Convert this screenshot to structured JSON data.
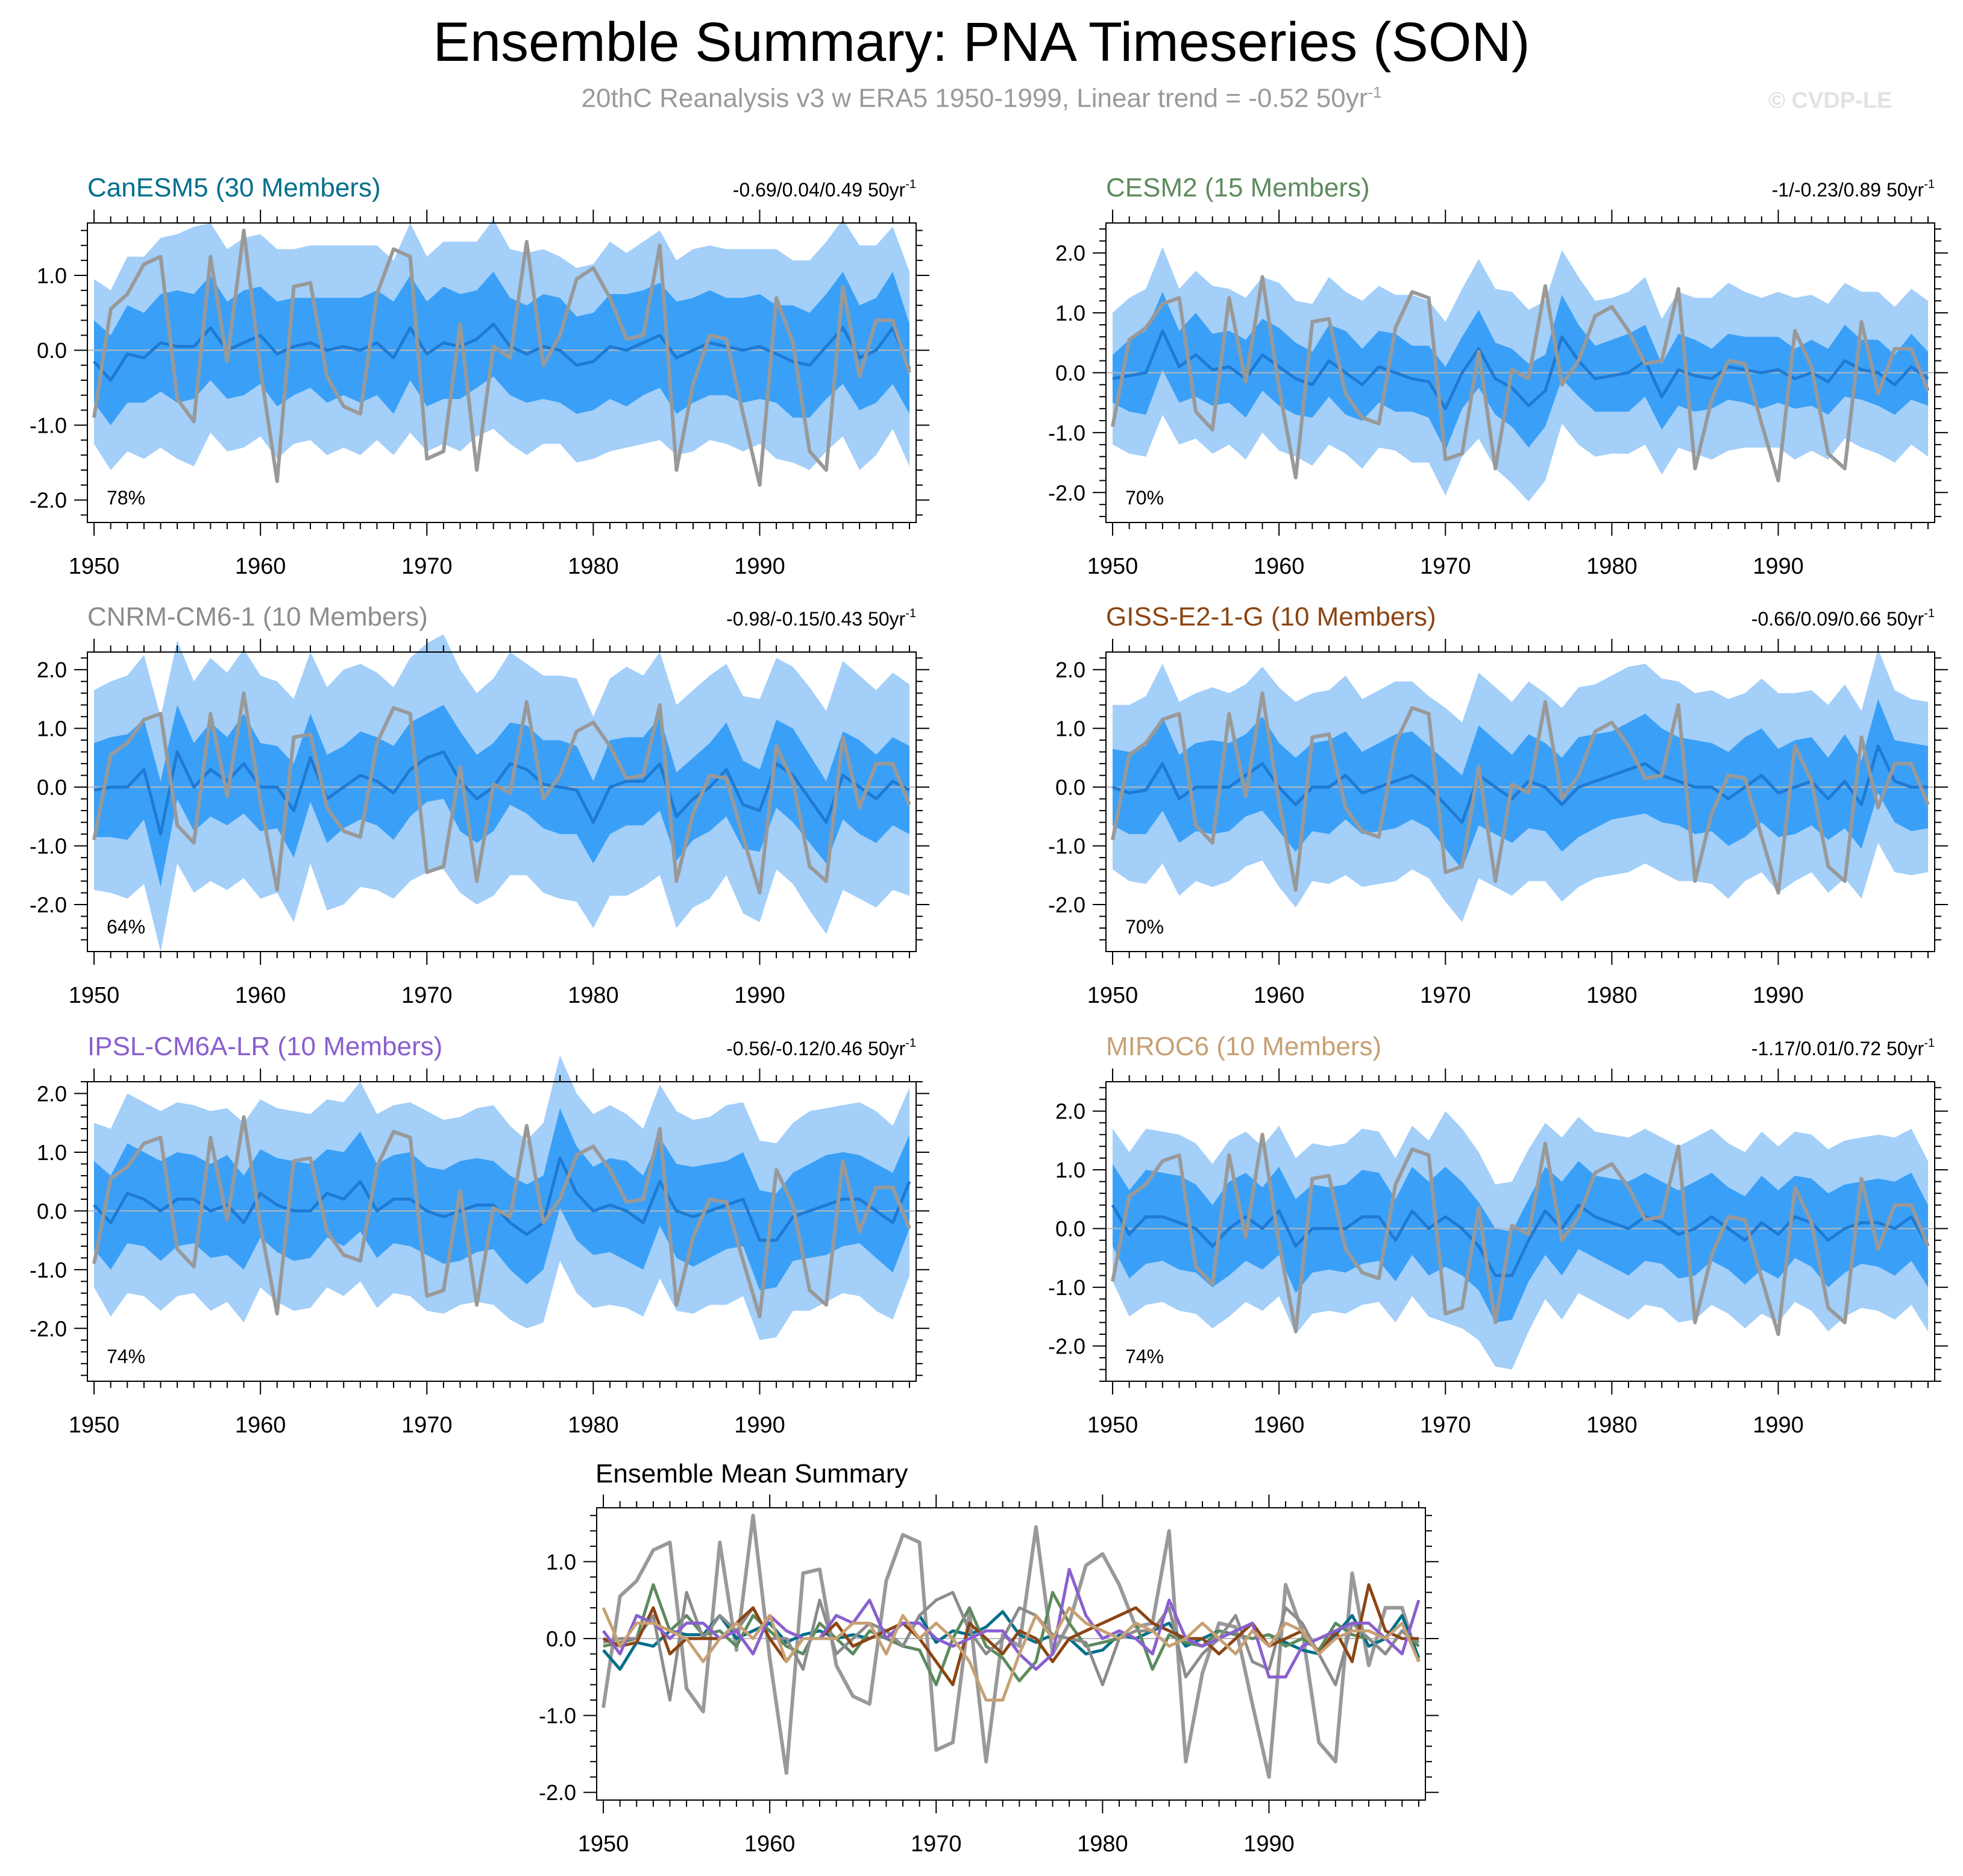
{
  "page": {
    "title": "Ensemble Summary: PNA Timeseries (SON)",
    "subtitle_main": "20thC Reanalysis v3 w ERA5 1950-1999, Linear trend = -0.52 50yr",
    "subtitle_sup": "-1",
    "watermark": "© CVDP-LE"
  },
  "colors": {
    "band_outer": "#a3cff9",
    "band_inner": "#3aa0f7",
    "ens_mean": "#1f7ad3",
    "observed": "#999999",
    "zero_line": "#b8b8b8"
  },
  "chart_data": {
    "type": "line",
    "x": [
      1950,
      1951,
      1952,
      1953,
      1954,
      1955,
      1956,
      1957,
      1958,
      1959,
      1960,
      1961,
      1962,
      1963,
      1964,
      1965,
      1966,
      1967,
      1968,
      1969,
      1970,
      1971,
      1972,
      1973,
      1974,
      1975,
      1976,
      1977,
      1978,
      1979,
      1980,
      1981,
      1982,
      1983,
      1984,
      1985,
      1986,
      1987,
      1988,
      1989,
      1990,
      1991,
      1992,
      1993,
      1994,
      1995,
      1996,
      1997,
      1998,
      1999
    ],
    "xlim": [
      1949.6,
      1999.4
    ],
    "xticks": [
      1950,
      1960,
      1970,
      1980,
      1990
    ],
    "observed": {
      "name": "20thC Reanalysis v3 w ERA5",
      "values": [
        -0.9,
        0.55,
        0.75,
        1.15,
        1.25,
        -0.65,
        -0.95,
        1.25,
        -0.15,
        1.6,
        -0.25,
        -1.75,
        0.85,
        0.9,
        -0.35,
        -0.75,
        -0.85,
        0.75,
        1.35,
        1.25,
        -1.45,
        -1.35,
        0.35,
        -1.6,
        0.05,
        -0.1,
        1.45,
        -0.2,
        0.2,
        0.95,
        1.1,
        0.7,
        0.15,
        0.2,
        1.4,
        -1.6,
        -0.45,
        0.2,
        0.15,
        -0.85,
        -1.8,
        0.7,
        0.1,
        -1.35,
        -1.6,
        0.85,
        -0.35,
        0.4,
        0.4,
        -0.3
      ]
    },
    "panels": [
      {
        "model": "CanESM5",
        "members": "30 Members",
        "title_color": "#006f8a",
        "trend_text": "-0.69/0.04/0.49 50yr",
        "percent": "78%",
        "ylim": [
          -2.3,
          1.7
        ],
        "yticks": [
          -2.0,
          -1.0,
          0.0,
          1.0
        ],
        "ytick_labels": [
          "-2.0",
          "-1.0",
          "0.0",
          "1.0"
        ],
        "mean": [
          -0.15,
          -0.4,
          -0.05,
          -0.1,
          0.1,
          0.05,
          0.05,
          0.3,
          0.0,
          0.1,
          0.2,
          -0.05,
          0.05,
          0.1,
          0.0,
          0.05,
          0.0,
          0.1,
          -0.1,
          0.3,
          -0.05,
          0.1,
          0.05,
          0.15,
          0.35,
          0.05,
          -0.05,
          0.05,
          0.0,
          -0.2,
          -0.15,
          0.05,
          0.0,
          0.1,
          0.2,
          -0.1,
          0.0,
          0.1,
          0.05,
          0.0,
          0.05,
          -0.05,
          -0.15,
          -0.2,
          0.05,
          0.3,
          -0.1,
          0.0,
          0.3,
          -0.25
        ],
        "inner_hw": [
          0.55,
          0.6,
          0.65,
          0.6,
          0.65,
          0.75,
          0.7,
          0.7,
          0.65,
          0.7,
          0.65,
          0.7,
          0.65,
          0.6,
          0.7,
          0.65,
          0.7,
          0.7,
          0.75,
          0.7,
          0.7,
          0.75,
          0.7,
          0.65,
          0.7,
          0.65,
          0.65,
          0.7,
          0.7,
          0.65,
          0.65,
          0.7,
          0.75,
          0.7,
          0.7,
          0.75,
          0.7,
          0.7,
          0.65,
          0.7,
          0.7,
          0.65,
          0.75,
          0.7,
          0.7,
          0.75,
          0.7,
          0.7,
          0.75,
          0.6
        ],
        "outer_hw": [
          1.1,
          1.2,
          1.3,
          1.35,
          1.4,
          1.5,
          1.6,
          1.4,
          1.35,
          1.4,
          1.35,
          1.4,
          1.3,
          1.3,
          1.4,
          1.35,
          1.4,
          1.3,
          1.3,
          1.4,
          1.3,
          1.35,
          1.4,
          1.3,
          1.4,
          1.3,
          1.35,
          1.3,
          1.25,
          1.3,
          1.3,
          1.4,
          1.3,
          1.35,
          1.4,
          1.3,
          1.35,
          1.3,
          1.3,
          1.35,
          1.3,
          1.4,
          1.35,
          1.4,
          1.4,
          1.45,
          1.5,
          1.4,
          1.35,
          1.3
        ]
      },
      {
        "model": "CESM2",
        "members": "15 Members",
        "title_color": "#5d8a5d",
        "trend_text": "-1/-0.23/0.89 50yr",
        "percent": "70%",
        "ylim": [
          -2.5,
          2.5
        ],
        "yticks": [
          -2.0,
          -1.0,
          0.0,
          1.0,
          2.0
        ],
        "ytick_labels": [
          "-2.0",
          "-1.0",
          "0.0",
          "1.0",
          "2.0"
        ],
        "mean": [
          -0.1,
          -0.05,
          0.0,
          0.7,
          0.1,
          0.3,
          0.05,
          0.1,
          -0.1,
          0.3,
          0.1,
          -0.1,
          -0.2,
          0.2,
          0.0,
          -0.2,
          0.1,
          0.0,
          -0.1,
          -0.15,
          -0.6,
          0.0,
          0.4,
          -0.1,
          -0.25,
          -0.55,
          -0.3,
          0.6,
          0.2,
          -0.1,
          -0.05,
          0.0,
          0.2,
          -0.4,
          0.05,
          -0.05,
          -0.1,
          0.1,
          0.05,
          0.0,
          0.05,
          -0.1,
          0.0,
          -0.15,
          0.2,
          0.05,
          0.0,
          -0.2,
          0.1,
          -0.1
        ],
        "inner_hw": [
          0.4,
          0.6,
          0.7,
          0.65,
          0.6,
          0.7,
          0.6,
          0.6,
          0.65,
          0.6,
          0.65,
          0.6,
          0.55,
          0.6,
          0.7,
          0.6,
          0.6,
          0.65,
          0.55,
          0.6,
          0.7,
          0.6,
          0.65,
          0.6,
          0.65,
          0.7,
          0.6,
          0.7,
          0.6,
          0.55,
          0.6,
          0.65,
          0.6,
          0.55,
          0.6,
          0.6,
          0.5,
          0.55,
          0.55,
          0.6,
          0.55,
          0.5,
          0.55,
          0.55,
          0.6,
          0.5,
          0.55,
          0.5,
          0.55,
          0.45
        ],
        "outer_hw": [
          1.1,
          1.3,
          1.4,
          1.4,
          1.3,
          1.4,
          1.4,
          1.3,
          1.35,
          1.3,
          1.4,
          1.3,
          1.35,
          1.4,
          1.35,
          1.4,
          1.35,
          1.3,
          1.4,
          1.35,
          1.45,
          1.4,
          1.5,
          1.5,
          1.6,
          1.6,
          1.5,
          1.45,
          1.4,
          1.3,
          1.3,
          1.35,
          1.4,
          1.3,
          1.3,
          1.3,
          1.35,
          1.4,
          1.3,
          1.25,
          1.3,
          1.35,
          1.3,
          1.3,
          1.3,
          1.3,
          1.35,
          1.3,
          1.3,
          1.3
        ]
      },
      {
        "model": "CNRM-CM6-1",
        "members": "10 Members",
        "title_color": "#8c8c8c",
        "trend_text": "-0.98/-0.15/0.43 50yr",
        "percent": "64%",
        "ylim": [
          -2.8,
          2.3
        ],
        "yticks": [
          -2.0,
          -1.0,
          0.0,
          1.0,
          2.0
        ],
        "ytick_labels": [
          "-2.0",
          "-1.0",
          "0.0",
          "1.0",
          "2.0"
        ],
        "mean": [
          -0.05,
          0.0,
          0.0,
          0.3,
          -0.8,
          0.6,
          0.0,
          0.3,
          0.1,
          0.4,
          0.0,
          0.0,
          -0.4,
          0.5,
          -0.2,
          0.0,
          0.2,
          0.1,
          -0.1,
          0.3,
          0.5,
          0.6,
          0.1,
          -0.2,
          0.0,
          0.4,
          0.3,
          0.05,
          0.0,
          -0.05,
          -0.6,
          0.0,
          0.1,
          0.1,
          0.4,
          -0.5,
          -0.2,
          0.0,
          0.3,
          -0.3,
          -0.4,
          0.4,
          0.2,
          -0.2,
          -0.6,
          0.2,
          0.0,
          -0.2,
          0.1,
          -0.05
        ],
        "inner_hw": [
          0.8,
          0.85,
          0.9,
          0.85,
          0.9,
          0.8,
          0.75,
          0.8,
          0.75,
          0.85,
          0.75,
          0.7,
          0.8,
          0.75,
          0.75,
          0.7,
          0.75,
          0.75,
          0.8,
          0.8,
          0.75,
          0.8,
          0.85,
          0.75,
          0.75,
          0.7,
          0.75,
          0.75,
          0.8,
          0.75,
          0.7,
          0.8,
          0.75,
          0.75,
          0.8,
          0.75,
          0.7,
          0.75,
          0.8,
          0.75,
          0.7,
          0.75,
          0.8,
          0.75,
          0.7,
          0.75,
          0.8,
          0.75,
          0.75,
          0.75
        ],
        "outer_hw": [
          1.7,
          1.8,
          1.9,
          1.95,
          2.0,
          1.9,
          1.8,
          1.9,
          1.85,
          1.95,
          1.9,
          1.8,
          1.9,
          1.8,
          1.9,
          2.0,
          1.9,
          1.85,
          1.8,
          1.9,
          1.95,
          2.0,
          1.9,
          1.8,
          1.85,
          1.9,
          1.8,
          1.85,
          1.9,
          1.9,
          1.8,
          1.85,
          1.95,
          1.8,
          1.9,
          1.9,
          1.85,
          1.9,
          1.8,
          1.85,
          1.9,
          1.8,
          1.85,
          1.9,
          1.9,
          1.95,
          1.9,
          1.85,
          1.85,
          1.8
        ]
      },
      {
        "model": "GISS-E2-1-G",
        "members": "10 Members",
        "title_color": "#8b4513",
        "trend_text": "-0.66/0.09/0.66 50yr",
        "percent": "70%",
        "ylim": [
          -2.8,
          2.3
        ],
        "yticks": [
          -2.0,
          -1.0,
          0.0,
          1.0,
          2.0
        ],
        "ytick_labels": [
          "-2.0",
          "-1.0",
          "0.0",
          "1.0",
          "2.0"
        ],
        "mean": [
          0.0,
          -0.1,
          -0.05,
          0.4,
          -0.2,
          0.0,
          0.0,
          0.0,
          0.2,
          0.4,
          0.0,
          -0.3,
          0.0,
          0.0,
          0.2,
          -0.1,
          0.0,
          0.1,
          0.2,
          0.0,
          -0.3,
          -0.6,
          0.2,
          0.0,
          -0.2,
          0.1,
          0.0,
          -0.3,
          0.0,
          0.1,
          0.2,
          0.3,
          0.4,
          0.2,
          0.1,
          0.0,
          0.0,
          -0.2,
          0.0,
          0.2,
          -0.1,
          0.0,
          0.1,
          -0.2,
          0.1,
          -0.3,
          0.7,
          0.1,
          0.0,
          0.0
        ],
        "inner_hw": [
          0.65,
          0.7,
          0.75,
          0.8,
          0.75,
          0.75,
          0.8,
          0.75,
          0.7,
          0.8,
          0.75,
          0.8,
          0.75,
          0.8,
          0.75,
          0.7,
          0.75,
          0.8,
          0.75,
          0.7,
          0.75,
          0.8,
          0.85,
          0.8,
          0.75,
          0.8,
          0.75,
          0.8,
          0.85,
          0.8,
          0.75,
          0.8,
          0.85,
          0.8,
          0.75,
          0.8,
          0.75,
          0.8,
          0.85,
          0.8,
          0.75,
          0.8,
          0.75,
          0.7,
          0.8,
          0.75,
          0.8,
          0.7,
          0.75,
          0.7
        ],
        "outer_hw": [
          1.4,
          1.5,
          1.6,
          1.7,
          1.65,
          1.6,
          1.7,
          1.6,
          1.55,
          1.65,
          1.7,
          1.75,
          1.6,
          1.65,
          1.7,
          1.6,
          1.65,
          1.7,
          1.6,
          1.55,
          1.65,
          1.7,
          1.75,
          1.7,
          1.65,
          1.7,
          1.6,
          1.65,
          1.7,
          1.65,
          1.7,
          1.75,
          1.7,
          1.65,
          1.7,
          1.6,
          1.65,
          1.7,
          1.6,
          1.65,
          1.7,
          1.6,
          1.55,
          1.6,
          1.65,
          1.6,
          1.65,
          1.55,
          1.5,
          1.45
        ]
      },
      {
        "model": "IPSL-CM6A-LR",
        "members": "10 Members",
        "title_color": "#8a5fcf",
        "trend_text": "-0.56/-0.12/0.46 50yr",
        "percent": "74%",
        "ylim": [
          -2.9,
          2.2
        ],
        "yticks": [
          -2.0,
          -1.0,
          0.0,
          1.0,
          2.0
        ],
        "ytick_labels": [
          "-2.0",
          "-1.0",
          "0.0",
          "1.0",
          "2.0"
        ],
        "mean": [
          0.1,
          -0.2,
          0.3,
          0.2,
          0.0,
          0.2,
          0.2,
          0.0,
          0.1,
          -0.2,
          0.3,
          0.1,
          0.0,
          0.0,
          0.3,
          0.2,
          0.5,
          0.0,
          0.2,
          0.2,
          0.0,
          -0.1,
          0.0,
          0.1,
          0.1,
          -0.2,
          -0.4,
          -0.2,
          0.9,
          0.3,
          0.0,
          0.1,
          0.0,
          -0.2,
          0.5,
          0.0,
          -0.1,
          0.0,
          0.1,
          0.2,
          -0.5,
          -0.5,
          -0.1,
          0.0,
          0.1,
          0.2,
          0.2,
          0.0,
          -0.2,
          0.5
        ],
        "inner_hw": [
          0.75,
          0.8,
          0.85,
          0.8,
          0.85,
          0.8,
          0.75,
          0.8,
          0.85,
          0.8,
          0.75,
          0.8,
          0.85,
          0.8,
          0.75,
          0.8,
          0.85,
          0.8,
          0.75,
          0.8,
          0.75,
          0.8,
          0.85,
          0.8,
          0.75,
          0.8,
          0.85,
          0.8,
          0.85,
          0.8,
          0.75,
          0.8,
          0.85,
          0.8,
          0.75,
          0.8,
          0.85,
          0.8,
          0.75,
          0.8,
          0.85,
          0.8,
          0.75,
          0.8,
          0.85,
          0.8,
          0.75,
          0.8,
          0.85,
          0.8
        ],
        "outer_hw": [
          1.4,
          1.6,
          1.7,
          1.65,
          1.7,
          1.65,
          1.6,
          1.7,
          1.65,
          1.7,
          1.6,
          1.65,
          1.7,
          1.65,
          1.6,
          1.65,
          1.7,
          1.65,
          1.6,
          1.65,
          1.7,
          1.65,
          1.6,
          1.65,
          1.7,
          1.65,
          1.6,
          1.7,
          1.75,
          1.7,
          1.65,
          1.7,
          1.65,
          1.6,
          1.65,
          1.7,
          1.65,
          1.6,
          1.7,
          1.65,
          1.7,
          1.65,
          1.6,
          1.7,
          1.65,
          1.6,
          1.65,
          1.7,
          1.65,
          1.6
        ]
      },
      {
        "model": "MIROC6",
        "members": "10 Members",
        "title_color": "#c7a074",
        "trend_text": "-1.17/0.01/0.72 50yr",
        "percent": "74%",
        "ylim": [
          -2.6,
          2.5
        ],
        "yticks": [
          -2.0,
          -1.0,
          0.0,
          1.0,
          2.0
        ],
        "ytick_labels": [
          "-2.0",
          "-1.0",
          "0.0",
          "1.0",
          "2.0"
        ],
        "mean": [
          0.4,
          -0.1,
          0.2,
          0.2,
          0.1,
          0.0,
          -0.3,
          0.0,
          0.2,
          0.0,
          0.3,
          -0.3,
          0.0,
          0.0,
          0.0,
          0.2,
          0.2,
          -0.2,
          0.3,
          0.0,
          0.2,
          0.0,
          -0.3,
          -0.8,
          -0.8,
          -0.2,
          0.3,
          0.0,
          0.4,
          0.2,
          0.1,
          0.0,
          0.2,
          0.1,
          -0.1,
          0.0,
          0.2,
          0.0,
          -0.2,
          0.1,
          -0.1,
          0.2,
          0.1,
          -0.2,
          0.0,
          0.1,
          0.1,
          0.0,
          0.2,
          -0.3
        ],
        "inner_hw": [
          0.7,
          0.75,
          0.8,
          0.75,
          0.8,
          0.75,
          0.7,
          0.8,
          0.75,
          0.7,
          0.75,
          0.8,
          0.75,
          0.7,
          0.75,
          0.8,
          0.75,
          0.7,
          0.75,
          0.8,
          0.85,
          0.8,
          0.75,
          0.8,
          0.75,
          0.7,
          0.75,
          0.8,
          0.75,
          0.7,
          0.75,
          0.8,
          0.75,
          0.7,
          0.75,
          0.8,
          0.75,
          0.7,
          0.75,
          0.8,
          0.75,
          0.7,
          0.75,
          0.8,
          0.75,
          0.7,
          0.75,
          0.8,
          0.75,
          0.7
        ],
        "outer_hw": [
          1.3,
          1.4,
          1.5,
          1.45,
          1.5,
          1.45,
          1.4,
          1.5,
          1.45,
          1.4,
          1.45,
          1.5,
          1.45,
          1.4,
          1.45,
          1.5,
          1.45,
          1.4,
          1.45,
          1.5,
          1.8,
          1.7,
          1.6,
          1.55,
          1.6,
          1.55,
          1.5,
          1.55,
          1.5,
          1.45,
          1.5,
          1.55,
          1.5,
          1.45,
          1.5,
          1.55,
          1.5,
          1.45,
          1.5,
          1.55,
          1.5,
          1.45,
          1.5,
          1.55,
          1.5,
          1.45,
          1.5,
          1.55,
          1.5,
          1.45
        ]
      }
    ],
    "summary": {
      "title": "Ensemble Mean Summary",
      "ylim": [
        -2.1,
        1.7
      ],
      "yticks": [
        -2.0,
        -1.0,
        0.0,
        1.0
      ],
      "ytick_labels": [
        "-2.0",
        "-1.0",
        "0.0",
        "1.0"
      ]
    }
  }
}
